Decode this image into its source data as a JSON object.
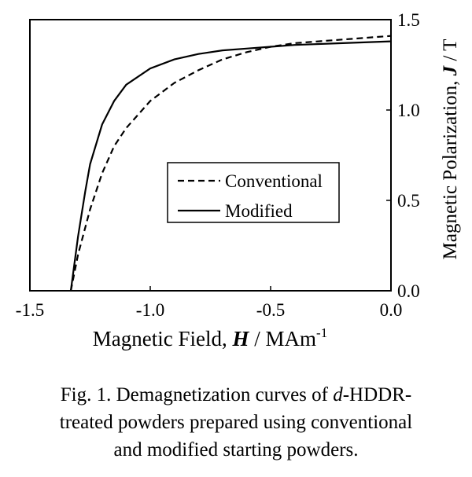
{
  "chart_data": {
    "type": "line",
    "xlabel": [
      "Magnetic Field, ",
      "H",
      " / MAm",
      "-1"
    ],
    "ylabel": [
      "Magnetic Polarization, ",
      "J",
      " / T"
    ],
    "caption": [
      [
        "Fig. 1. Demagnetization curves of ",
        "d",
        "-HDDR-"
      ],
      "treated powders prepared using conventional",
      "and modified starting powders."
    ],
    "xlim": [
      -1.5,
      0
    ],
    "ylim": [
      0,
      1.5
    ],
    "xticks": [
      -1.5,
      {
        "value": -1.0,
        "label": "-1.0"
      },
      -0.5,
      {
        "value": 0,
        "label": "0.0"
      }
    ],
    "yticks": [
      {
        "value": 0,
        "label": "0.0"
      },
      0.5,
      {
        "value": 1.0,
        "label": "1.0"
      },
      1.5
    ],
    "series": [
      {
        "name": "Conventional",
        "color": "#000000",
        "dash": "dashed",
        "x": [
          -1.33,
          -1.3,
          -1.25,
          -1.2,
          -1.15,
          -1.1,
          -1.0,
          -0.9,
          -0.8,
          -0.7,
          -0.6,
          -0.5,
          -0.4,
          -0.3,
          -0.2,
          -0.1,
          0
        ],
        "values": [
          0,
          0.2,
          0.45,
          0.65,
          0.8,
          0.9,
          1.05,
          1.15,
          1.22,
          1.28,
          1.32,
          1.35,
          1.37,
          1.38,
          1.39,
          1.4,
          1.41
        ]
      },
      {
        "name": "Modified",
        "color": "#000000",
        "dash": "solid",
        "x": [
          -1.33,
          -1.3,
          -1.27,
          -1.25,
          -1.2,
          -1.15,
          -1.1,
          -1.0,
          -0.9,
          -0.8,
          -0.7,
          -0.6,
          -0.5,
          -0.4,
          -0.2,
          0
        ],
        "values": [
          0,
          0.3,
          0.55,
          0.7,
          0.92,
          1.05,
          1.14,
          1.23,
          1.28,
          1.31,
          1.33,
          1.34,
          1.35,
          1.36,
          1.37,
          1.38
        ]
      }
    ]
  }
}
